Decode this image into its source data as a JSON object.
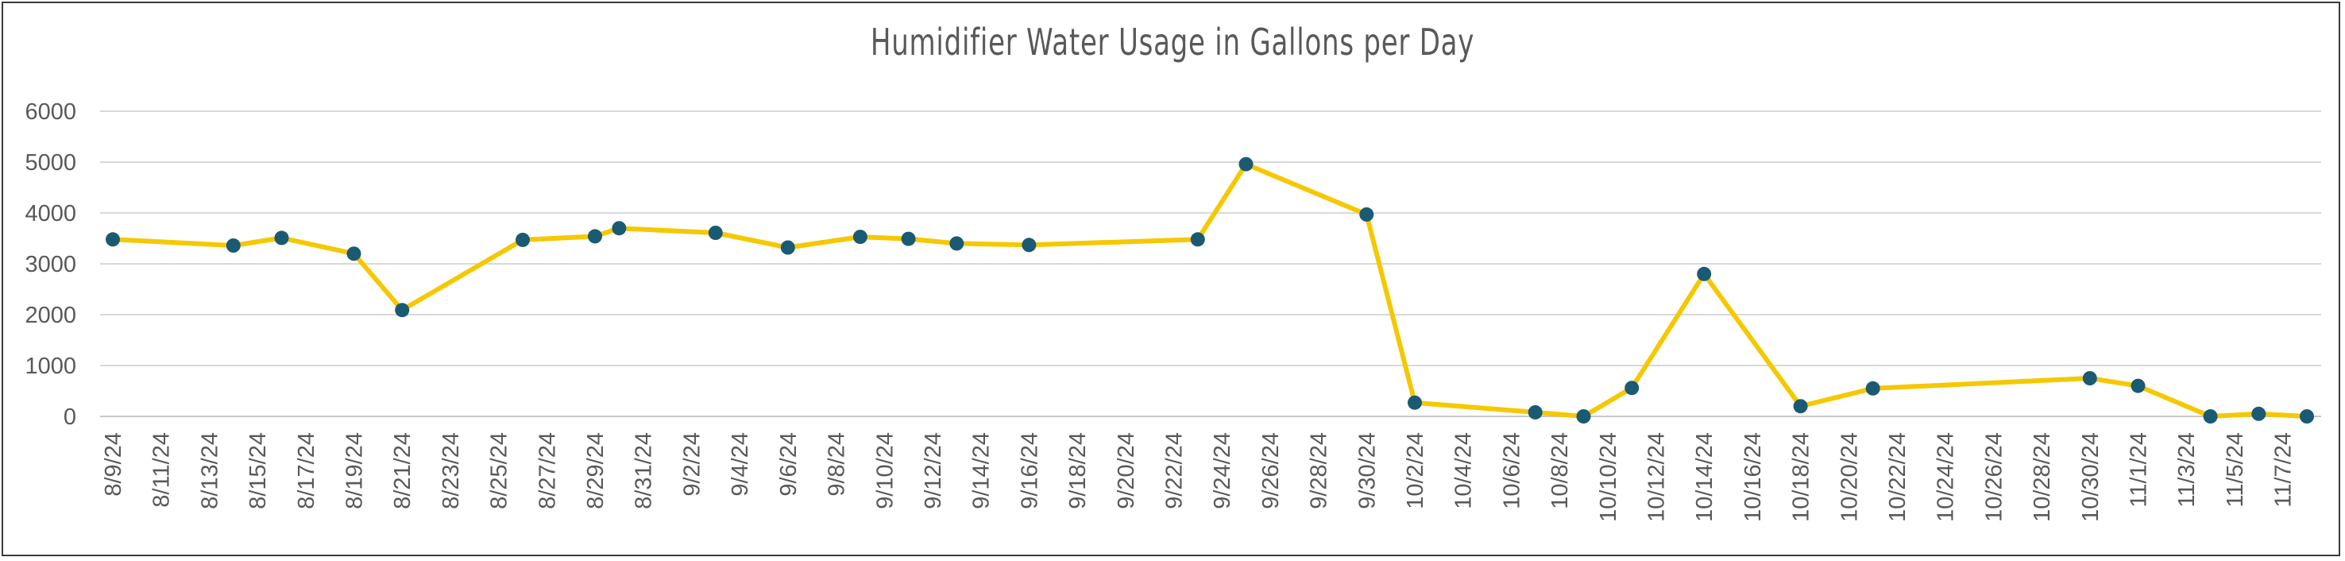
{
  "chart_data": {
    "type": "line",
    "title": "Humidifier Water Usage in Gallons per Day",
    "xlabel": "",
    "ylabel": "",
    "ylim": [
      0,
      6000
    ],
    "yticks": [
      0,
      1000,
      2000,
      3000,
      4000,
      5000,
      6000
    ],
    "grid": true,
    "legend": "none",
    "x_range": [
      "8/9/24",
      "11/8/24"
    ],
    "x_tick_labels": [
      "8/9/24",
      "8/11/24",
      "8/13/24",
      "8/15/24",
      "8/17/24",
      "8/19/24",
      "8/21/24",
      "8/23/24",
      "8/25/24",
      "8/27/24",
      "8/29/24",
      "8/31/24",
      "9/2/24",
      "9/4/24",
      "9/6/24",
      "9/8/24",
      "9/10/24",
      "9/12/24",
      "9/14/24",
      "9/16/24",
      "9/18/24",
      "9/20/24",
      "9/22/24",
      "9/24/24",
      "9/26/24",
      "9/28/24",
      "9/30/24",
      "10/2/24",
      "10/4/24",
      "10/6/24",
      "10/8/24",
      "10/10/24",
      "10/12/24",
      "10/14/24",
      "10/16/24",
      "10/18/24",
      "10/20/24",
      "10/22/24",
      "10/24/24",
      "10/26/24",
      "10/28/24",
      "10/30/24",
      "11/1/24",
      "11/3/24",
      "11/5/24",
      "11/7/24"
    ],
    "line_color": "#F5C800",
    "marker_color": "#1B5A73",
    "series": [
      {
        "x": [
          "8/9/24",
          "8/14/24",
          "8/16/24",
          "8/19/24",
          "8/21/24",
          "8/26/24",
          "8/29/24",
          "8/30/24",
          "9/3/24",
          "9/6/24",
          "9/9/24",
          "9/11/24",
          "9/13/24",
          "9/16/24",
          "9/23/24",
          "9/25/24",
          "9/30/24",
          "10/2/24",
          "10/7/24",
          "10/9/24",
          "10/11/24",
          "10/14/24",
          "10/18/24",
          "10/21/24",
          "10/30/24",
          "11/1/24",
          "11/4/24",
          "11/6/24",
          "11/8/24"
        ],
        "y": [
          3480,
          3360,
          3510,
          3200,
          2090,
          3470,
          3540,
          3700,
          3610,
          3320,
          3530,
          3490,
          3400,
          3370,
          3480,
          4960,
          3970,
          270,
          80,
          0,
          560,
          2800,
          200,
          550,
          750,
          600,
          0,
          50,
          0
        ]
      }
    ]
  }
}
